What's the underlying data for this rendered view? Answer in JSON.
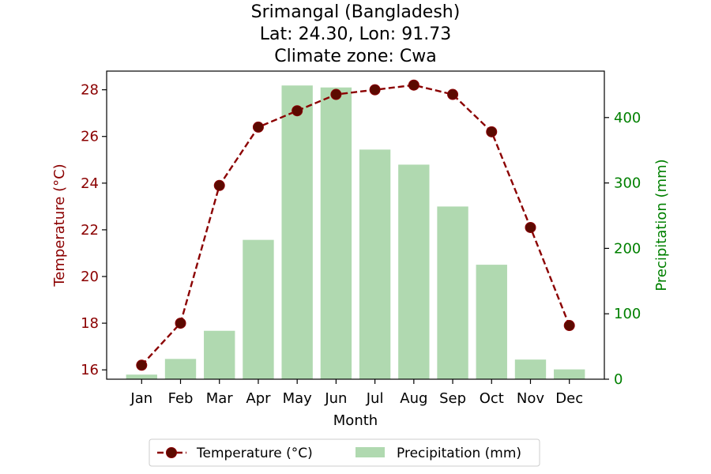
{
  "chart_data": {
    "type": "bar+line",
    "title_lines": [
      "Srimangal (Bangladesh)",
      "Lat: 24.30, Lon: 91.73",
      "Climate zone: Cwa"
    ],
    "categories": [
      "Jan",
      "Feb",
      "Mar",
      "Apr",
      "May",
      "Jun",
      "Jul",
      "Aug",
      "Sep",
      "Oct",
      "Nov",
      "Dec"
    ],
    "xlabel": "Month",
    "temperature": {
      "name": "Temperature (°C)",
      "axis_label": "Temperature (°C)",
      "values": [
        16.2,
        18.0,
        23.9,
        26.4,
        27.1,
        27.8,
        28.0,
        28.2,
        27.8,
        26.2,
        22.1,
        17.9
      ],
      "ylim": [
        15.6,
        28.8
      ],
      "ticks": [
        16,
        18,
        20,
        22,
        24,
        26,
        28
      ],
      "color": "#8b0000"
    },
    "precipitation": {
      "name": "Precipitation (mm)",
      "axis_label": "Precipitation (mm)",
      "values": [
        7,
        31,
        74,
        213,
        449,
        446,
        351,
        328,
        264,
        175,
        30,
        15
      ],
      "ylim": [
        0,
        471
      ],
      "ticks": [
        0,
        100,
        200,
        300,
        400
      ],
      "color": "#008000",
      "bar_color": "#b0d9b0"
    },
    "grid": false,
    "legend_position": "bottom-center"
  }
}
